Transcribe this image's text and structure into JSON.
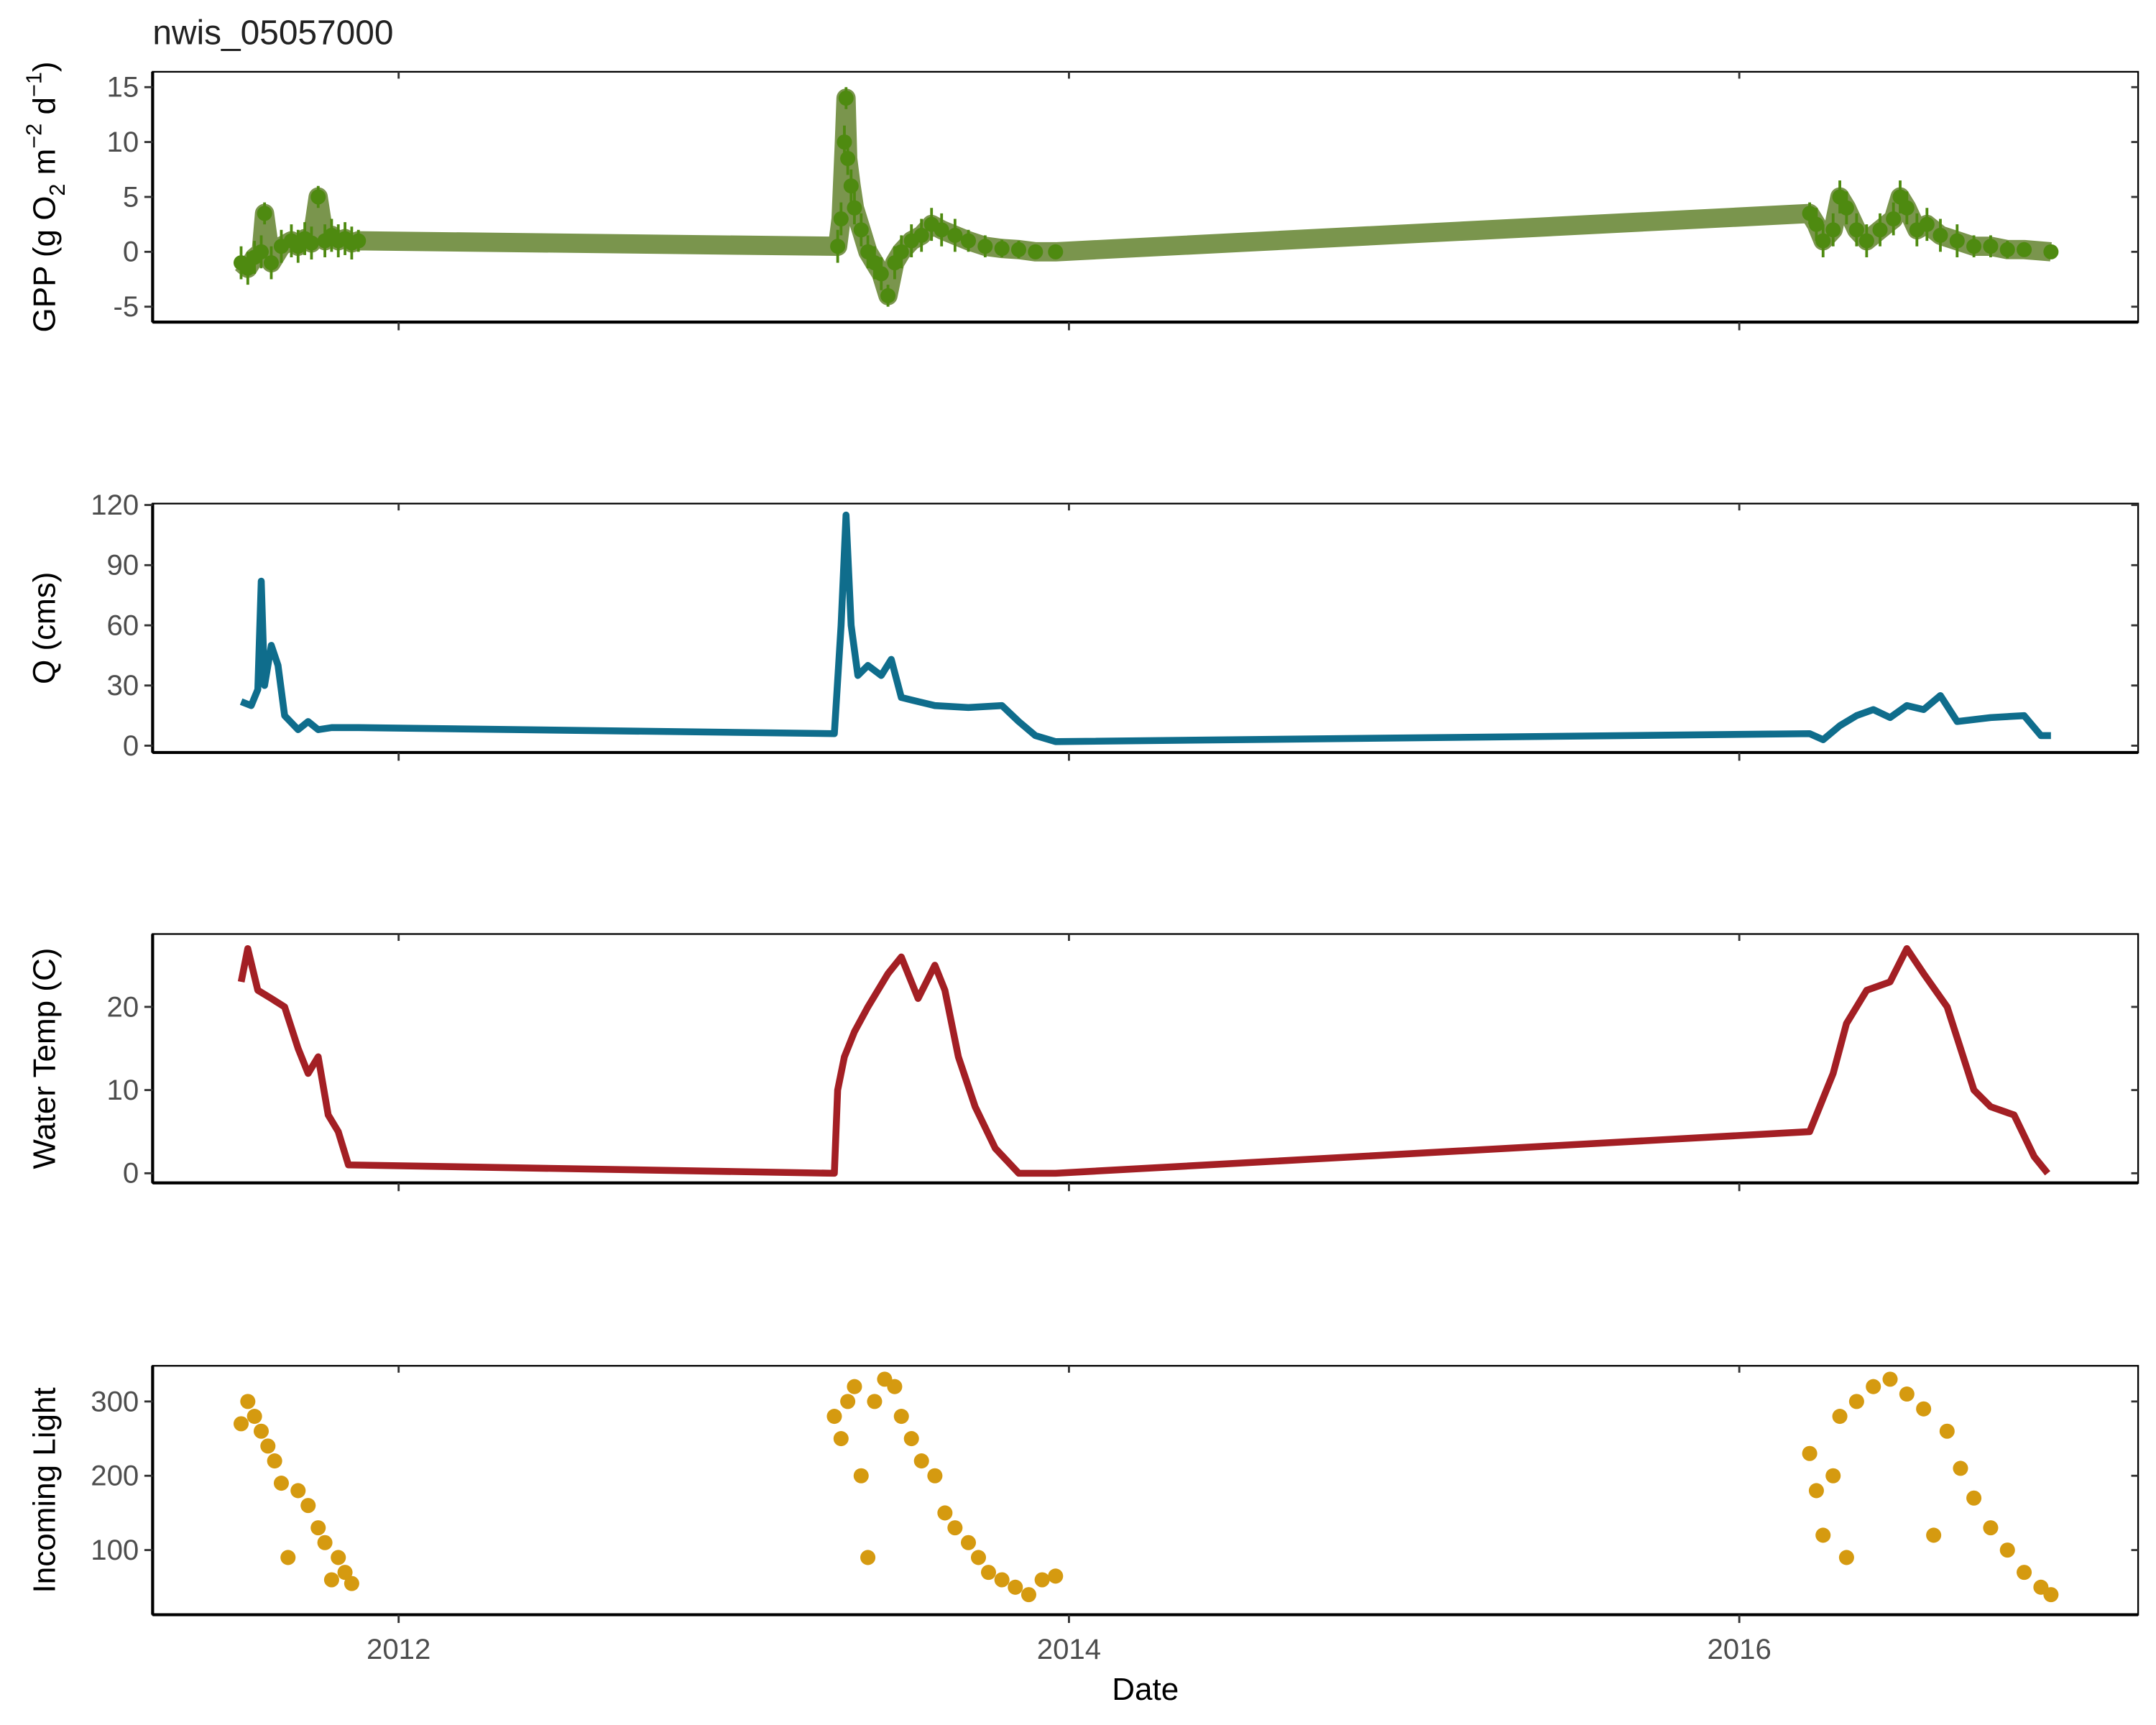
{
  "title": "nwis_05057000",
  "xlabel": "Date",
  "chart_data": [
    {
      "type": "scatter",
      "ylabel": [
        "GPP (g  O",
        "2",
        " m",
        "−2",
        " d",
        "−1",
        ")"
      ],
      "color": "#4e8a10",
      "error_color": "#6b8a3a",
      "x": [
        2011.53,
        2011.55,
        2011.57,
        2011.59,
        2011.6,
        2011.62,
        2011.65,
        2011.68,
        2011.7,
        2011.72,
        2011.74,
        2011.76,
        2011.78,
        2011.8,
        2011.82,
        2011.84,
        2011.86,
        2011.88,
        2013.31,
        2013.32,
        2013.33,
        2013.335,
        2013.34,
        2013.35,
        2013.36,
        2013.38,
        2013.4,
        2013.42,
        2013.44,
        2013.46,
        2013.48,
        2013.5,
        2013.53,
        2013.56,
        2013.59,
        2013.62,
        2013.66,
        2013.7,
        2013.75,
        2013.8,
        2013.85,
        2013.9,
        2013.96,
        2016.21,
        2016.23,
        2016.25,
        2016.28,
        2016.3,
        2016.32,
        2016.35,
        2016.38,
        2016.42,
        2016.46,
        2016.48,
        2016.5,
        2016.53,
        2016.56,
        2016.6,
        2016.65,
        2016.7,
        2016.75,
        2016.8,
        2016.85,
        2016.93
      ],
      "values": [
        -1,
        -1.5,
        -0.5,
        0,
        3.5,
        -1,
        0.5,
        1,
        0.5,
        1.2,
        0.8,
        5,
        1,
        1.5,
        1,
        1.2,
        0.8,
        1,
        0.5,
        3,
        10,
        14,
        8.5,
        6,
        4,
        2,
        0,
        -1,
        -2,
        -4,
        -1,
        0,
        1,
        1.5,
        2.5,
        2,
        1.5,
        1,
        0.5,
        0.3,
        0.2,
        0,
        0,
        3.5,
        2.5,
        1,
        2,
        5,
        4,
        2,
        1,
        2,
        3,
        5,
        4,
        2,
        2.5,
        1.5,
        1,
        0.5,
        0.5,
        0.2,
        0.2,
        0
      ],
      "errors": [
        1.5,
        1.5,
        1.5,
        1.5,
        1,
        1.5,
        1.5,
        1.5,
        1.5,
        1.5,
        1.5,
        1,
        1.5,
        1.5,
        1.5,
        1.5,
        1.5,
        1,
        1.5,
        1.5,
        1.5,
        1,
        1.5,
        1.5,
        1.5,
        1.5,
        1.5,
        1.5,
        1.5,
        1,
        1.5,
        1.5,
        1.5,
        1.5,
        1.5,
        1.5,
        1.5,
        1,
        1,
        0.8,
        0.8,
        0.6,
        0.5,
        1,
        1.5,
        1.5,
        1.5,
        1.5,
        1.5,
        1.5,
        1.5,
        1.5,
        1.5,
        1.5,
        1.5,
        1.5,
        1.5,
        1.5,
        1.5,
        1,
        1,
        0.8,
        0.6,
        0.5
      ],
      "xlim": [
        2011.266,
        2017.19
      ],
      "xticks": [
        2012,
        2014,
        2016
      ],
      "ylim": [
        -6.4,
        16.4
      ],
      "yticks": [
        -5,
        0,
        5,
        10,
        15
      ]
    },
    {
      "type": "line",
      "ylabel": "Q (cms)",
      "color": "#0f6d8c",
      "x": [
        2011.53,
        2011.56,
        2011.58,
        2011.59,
        2011.6,
        2011.62,
        2011.64,
        2011.66,
        2011.7,
        2011.73,
        2011.76,
        2011.8,
        2011.88,
        2013.3,
        2013.32,
        2013.335,
        2013.35,
        2013.37,
        2013.4,
        2013.44,
        2013.47,
        2013.5,
        2013.55,
        2013.6,
        2013.7,
        2013.8,
        2013.85,
        2013.9,
        2013.96,
        2016.21,
        2016.25,
        2016.3,
        2016.35,
        2016.4,
        2016.45,
        2016.5,
        2016.55,
        2016.6,
        2016.65,
        2016.75,
        2016.85,
        2016.9,
        2016.93
      ],
      "values": [
        22,
        20,
        28,
        82,
        30,
        50,
        40,
        15,
        8,
        12,
        8,
        9,
        9,
        6,
        60,
        115,
        60,
        35,
        40,
        35,
        43,
        24,
        22,
        20,
        19,
        20,
        12,
        5,
        2,
        6,
        3,
        10,
        15,
        18,
        14,
        20,
        18,
        25,
        12,
        14,
        15,
        5,
        5
      ],
      "xlim": [
        2011.266,
        2017.19
      ],
      "xticks": [
        2012,
        2014,
        2016
      ],
      "ylim": [
        -3.4,
        120.7
      ],
      "yticks": [
        0,
        30,
        60,
        90,
        120
      ]
    },
    {
      "type": "line",
      "ylabel": "Water Temp (C)",
      "color": "#a31f24",
      "x": [
        2011.53,
        2011.55,
        2011.58,
        2011.62,
        2011.66,
        2011.7,
        2011.73,
        2011.76,
        2011.79,
        2011.82,
        2011.85,
        2013.3,
        2013.31,
        2013.33,
        2013.36,
        2013.4,
        2013.46,
        2013.5,
        2013.55,
        2013.6,
        2013.63,
        2013.67,
        2013.72,
        2013.78,
        2013.85,
        2013.96,
        2016.21,
        2016.23,
        2016.28,
        2016.32,
        2016.38,
        2016.45,
        2016.5,
        2016.55,
        2016.62,
        2016.7,
        2016.75,
        2016.82,
        2016.88,
        2016.92
      ],
      "values": [
        23,
        27,
        22,
        21,
        20,
        15,
        12,
        14,
        7,
        5,
        1,
        0,
        10,
        14,
        17,
        20,
        24,
        26,
        21,
        25,
        22,
        14,
        8,
        3,
        0,
        0,
        5,
        7,
        12,
        18,
        22,
        23,
        27,
        24,
        20,
        10,
        8,
        7,
        2,
        0
      ],
      "xlim": [
        2011.266,
        2017.19
      ],
      "xticks": [
        2012,
        2014,
        2016
      ],
      "ylim": [
        -1.16,
        28.76
      ],
      "yticks": [
        0,
        10,
        20
      ]
    },
    {
      "type": "scatter",
      "ylabel": "Incoming Light",
      "color": "#d59a10",
      "x": [
        2011.53,
        2011.55,
        2011.57,
        2011.59,
        2011.61,
        2011.63,
        2011.65,
        2011.67,
        2011.7,
        2011.73,
        2011.76,
        2011.78,
        2011.8,
        2011.82,
        2011.84,
        2011.86,
        2013.3,
        2013.32,
        2013.34,
        2013.36,
        2013.38,
        2013.4,
        2013.42,
        2013.45,
        2013.48,
        2013.5,
        2013.53,
        2013.56,
        2013.6,
        2013.63,
        2013.66,
        2013.7,
        2013.73,
        2013.76,
        2013.8,
        2013.84,
        2013.88,
        2013.92,
        2013.96,
        2016.21,
        2016.23,
        2016.25,
        2016.28,
        2016.3,
        2016.32,
        2016.35,
        2016.4,
        2016.45,
        2016.5,
        2016.55,
        2016.58,
        2016.62,
        2016.66,
        2016.7,
        2016.75,
        2016.8,
        2016.85,
        2016.9,
        2016.93
      ],
      "values": [
        270,
        300,
        280,
        260,
        240,
        220,
        190,
        90,
        180,
        160,
        130,
        110,
        60,
        90,
        70,
        55,
        280,
        250,
        300,
        320,
        200,
        90,
        300,
        330,
        320,
        280,
        250,
        220,
        200,
        150,
        130,
        110,
        90,
        70,
        60,
        50,
        40,
        60,
        65,
        230,
        180,
        120,
        200,
        280,
        90,
        300,
        320,
        330,
        310,
        290,
        120,
        260,
        210,
        170,
        130,
        100,
        70,
        50,
        40
      ],
      "xlim": [
        2011.266,
        2017.19
      ],
      "xticks": [
        2012,
        2014,
        2016
      ],
      "ylim": [
        13,
        348
      ],
      "yticks": [
        100,
        200,
        300
      ]
    }
  ]
}
